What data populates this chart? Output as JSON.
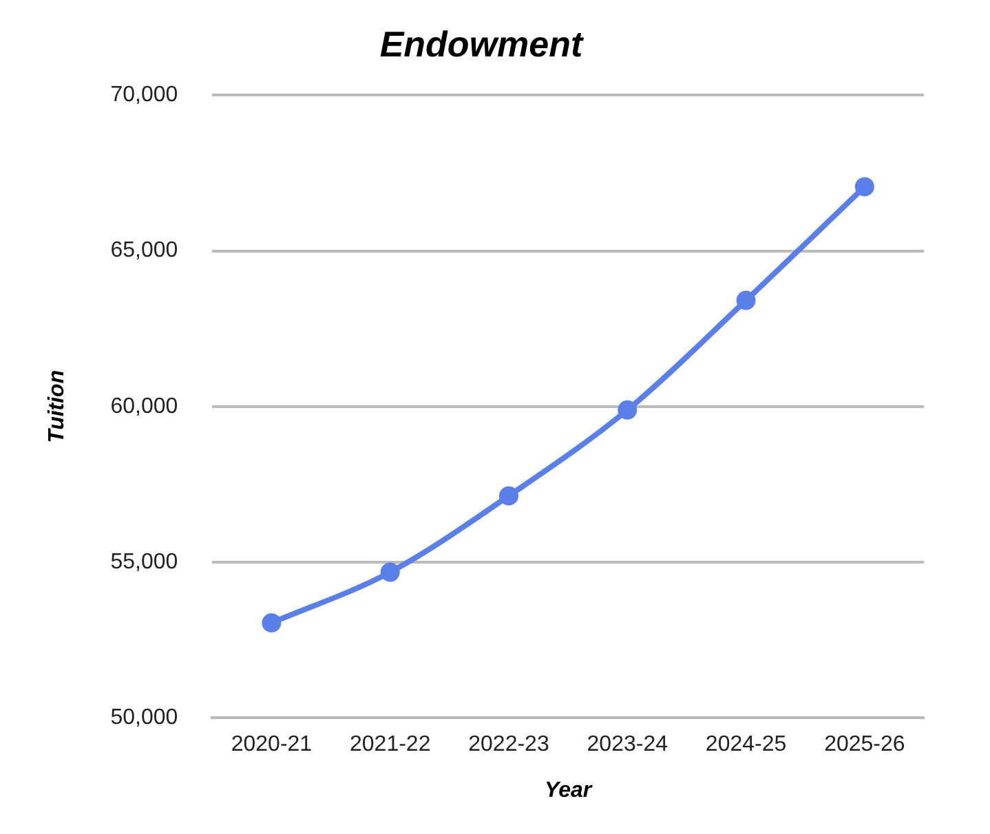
{
  "chart_data": {
    "type": "line",
    "title": "Endowment",
    "xlabel": "Year",
    "ylabel": "Tuition",
    "categories": [
      "2020-21",
      "2021-22",
      "2022-23",
      "2023-24",
      "2024-25",
      "2025-26"
    ],
    "series": [
      {
        "color": "#5b7fe8",
        "values": [
          53050,
          54680,
          57130,
          59890,
          63410,
          67060
        ]
      }
    ],
    "ylim": [
      50000,
      70000
    ],
    "yticks": [
      {
        "value": 50000,
        "label": "50,000"
      },
      {
        "value": 55000,
        "label": "55,000"
      },
      {
        "value": 60000,
        "label": "60,000"
      },
      {
        "value": 65000,
        "label": "65,000"
      },
      {
        "value": 70000,
        "label": "70,000"
      }
    ],
    "grid": "y",
    "legend": false,
    "marker": "circle",
    "line_style": "solid"
  }
}
